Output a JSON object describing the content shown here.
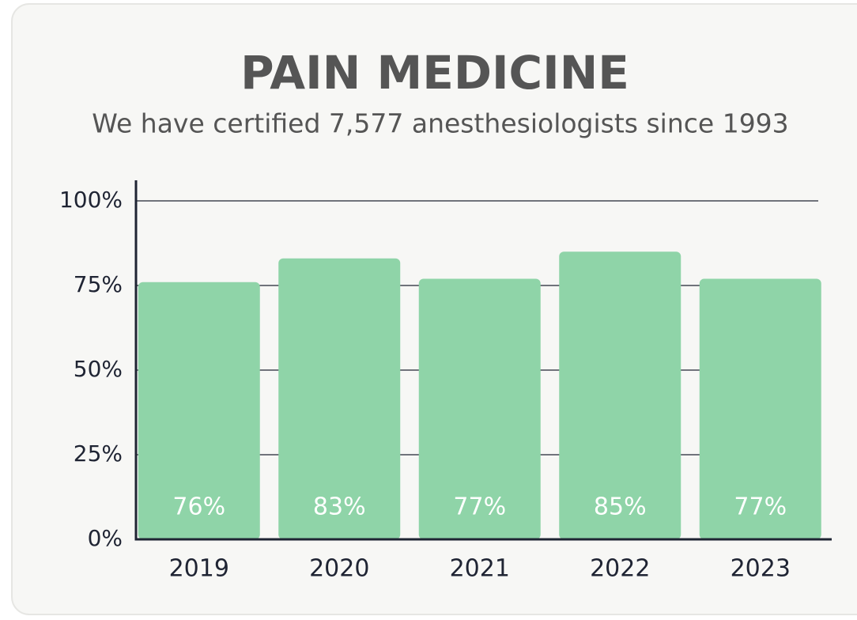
{
  "chart_data": {
    "type": "bar",
    "title": "PAIN MEDICINE",
    "subtitle": "We have certified 7,577 anesthesiologists since 1993",
    "categories": [
      "2019",
      "2020",
      "2021",
      "2022",
      "2023"
    ],
    "values": [
      76,
      83,
      77,
      85,
      77
    ],
    "value_labels": [
      "76%",
      "83%",
      "77%",
      "85%",
      "77%"
    ],
    "color": "#8fd4a8",
    "ylim": [
      0,
      100
    ],
    "yticks": [
      {
        "value": 0,
        "label": "0%"
      },
      {
        "value": 25,
        "label": "25%"
      },
      {
        "value": 50,
        "label": "50%"
      },
      {
        "value": 75,
        "label": "75%"
      },
      {
        "value": 100,
        "label": "100%"
      }
    ],
    "grid": true
  }
}
